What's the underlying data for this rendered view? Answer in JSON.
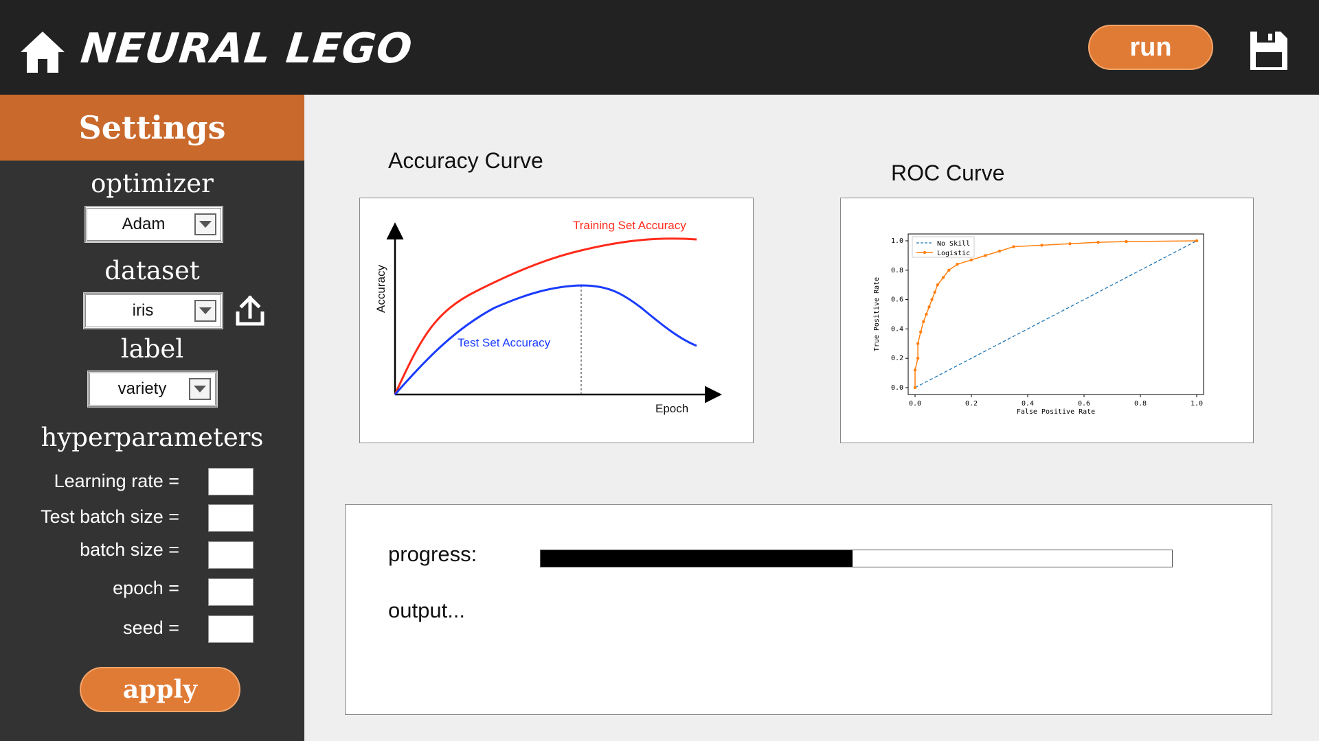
{
  "header": {
    "brand": "NEURAL LEGO",
    "run_label": "run",
    "icons": {
      "home": "home-icon",
      "save": "floppy-disk-icon"
    }
  },
  "sidebar": {
    "title": "Settings",
    "optimizer": {
      "label": "optimizer",
      "value": "Adam"
    },
    "dataset": {
      "label": "dataset",
      "value": "iris",
      "upload_icon": "upload-icon"
    },
    "label": {
      "label": "label",
      "value": "variety"
    },
    "hyperparameters": {
      "title": "hyperparameters",
      "fields": [
        {
          "label": "Learning rate =",
          "value": ""
        },
        {
          "label": "Test batch size =",
          "value": ""
        },
        {
          "label": "batch size =",
          "value": ""
        },
        {
          "label": "epoch =",
          "value": ""
        },
        {
          "label": "seed =",
          "value": ""
        }
      ]
    },
    "apply_label": "apply"
  },
  "main": {
    "accuracy_title": "Accuracy Curve",
    "roc_title": "ROC Curve",
    "progress_label": "progress:",
    "progress_value": 0.494,
    "output_label": "output..."
  },
  "colors": {
    "accent": "#e07b36",
    "header": "#222222",
    "sidebar": "#333333",
    "settings": "#c9692c"
  },
  "chart_data": [
    {
      "type": "line",
      "title": "",
      "xlabel": "Epoch",
      "ylabel": "Accuracy",
      "series": [
        {
          "name": "Training Set Accuracy",
          "color": "#ff2a1a"
        },
        {
          "name": "Test Set Accuracy",
          "color": "#1a3cff"
        }
      ],
      "annotations": [
        "dotted vertical line at peak of test set accuracy"
      ],
      "grid": false
    },
    {
      "type": "line",
      "title": "",
      "xlabel": "False Positive Rate",
      "ylabel": "True Positive Rate",
      "xlim": [
        0,
        1
      ],
      "ylim": [
        0,
        1
      ],
      "xticks": [
        "0.0",
        "0.2",
        "0.4",
        "0.6",
        "0.8",
        "1.0"
      ],
      "yticks": [
        "0.0",
        "0.2",
        "0.4",
        "0.6",
        "0.8",
        "1.0"
      ],
      "legend": "top-left",
      "series": [
        {
          "name": "No Skill",
          "color": "#1f77b4",
          "x": [
            0,
            1
          ],
          "y": [
            0,
            1
          ]
        },
        {
          "name": "Logistic",
          "color": "#ff7f0e",
          "x": [
            0,
            0,
            0.01,
            0.01,
            0.02,
            0.03,
            0.04,
            0.05,
            0.06,
            0.07,
            0.08,
            0.1,
            0.12,
            0.15,
            0.2,
            0.25,
            0.3,
            0.35,
            0.45,
            0.55,
            0.65,
            0.75,
            1.0
          ],
          "y": [
            0,
            0.12,
            0.2,
            0.3,
            0.38,
            0.45,
            0.5,
            0.55,
            0.6,
            0.65,
            0.7,
            0.75,
            0.8,
            0.84,
            0.87,
            0.9,
            0.93,
            0.96,
            0.97,
            0.98,
            0.99,
            0.995,
            1.0
          ]
        }
      ],
      "grid": false
    }
  ]
}
